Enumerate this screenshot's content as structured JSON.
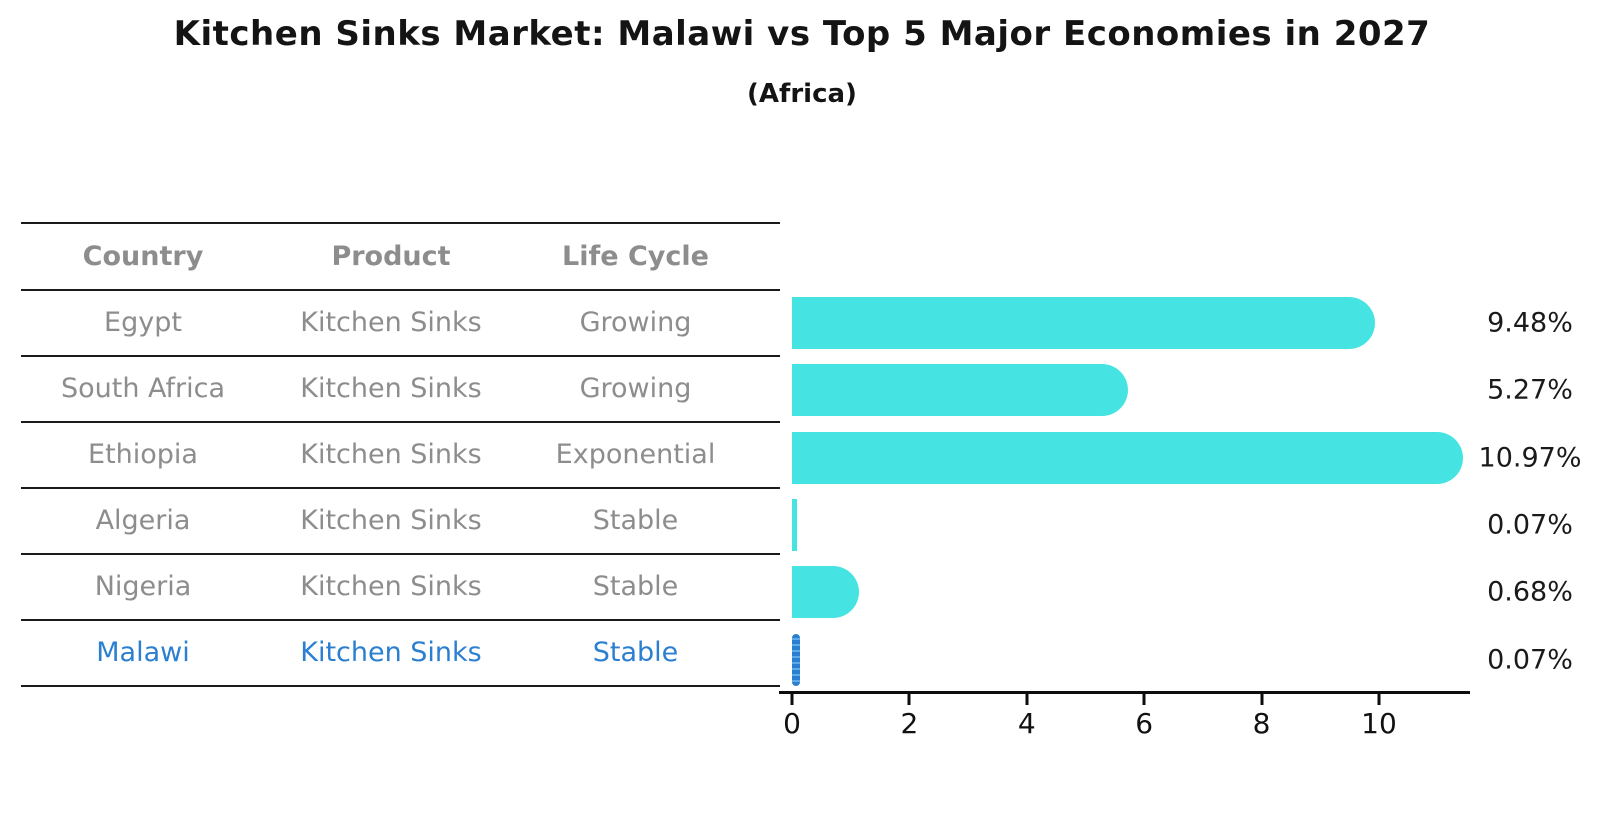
{
  "title": "Kitchen Sinks Market: Malawi vs Top 5 Major Economies in 2027",
  "subtitle": "(Africa)",
  "table": {
    "columns": [
      "Country",
      "Product",
      "Life Cycle"
    ],
    "rows": [
      {
        "country": "Egypt",
        "product": "Kitchen Sinks",
        "life_cycle": "Growing",
        "highlight": false
      },
      {
        "country": "South Africa",
        "product": "Kitchen Sinks",
        "life_cycle": "Growing",
        "highlight": false
      },
      {
        "country": "Ethiopia",
        "product": "Kitchen Sinks",
        "life_cycle": "Exponential",
        "highlight": false
      },
      {
        "country": "Algeria",
        "product": "Kitchen Sinks",
        "life_cycle": "Stable",
        "highlight": false
      },
      {
        "country": "Nigeria",
        "product": "Kitchen Sinks",
        "life_cycle": "Stable",
        "highlight": false
      },
      {
        "country": "Malawi",
        "product": "Kitchen Sinks",
        "life_cycle": "Stable",
        "highlight": true
      }
    ]
  },
  "chart_data": {
    "type": "bar",
    "orientation": "horizontal",
    "title": "Kitchen Sinks Market: Malawi vs Top 5 Major Economies in 2027",
    "subtitle": "(Africa)",
    "categories": [
      "Egypt",
      "South Africa",
      "Ethiopia",
      "Algeria",
      "Nigeria",
      "Malawi"
    ],
    "values": [
      9.48,
      5.27,
      10.97,
      0.07,
      0.68,
      0.07
    ],
    "value_labels": [
      "9.48%",
      "5.27%",
      "10.97%",
      "0.07%",
      "0.68%",
      "0.07%"
    ],
    "xticks": [
      0,
      2,
      4,
      6,
      8,
      10
    ],
    "xlim": [
      0,
      11.55
    ],
    "grid": false,
    "legend": false,
    "highlight_index": 5,
    "bar_color": "#46e3e3",
    "highlight_color": "#2b7fd1"
  },
  "colors": {
    "bar": "#46e3e3",
    "highlight": "#2b7fd1",
    "row_text": "#8d8d8d",
    "header_text": "#111111",
    "axis": "#0d0d0d"
  }
}
